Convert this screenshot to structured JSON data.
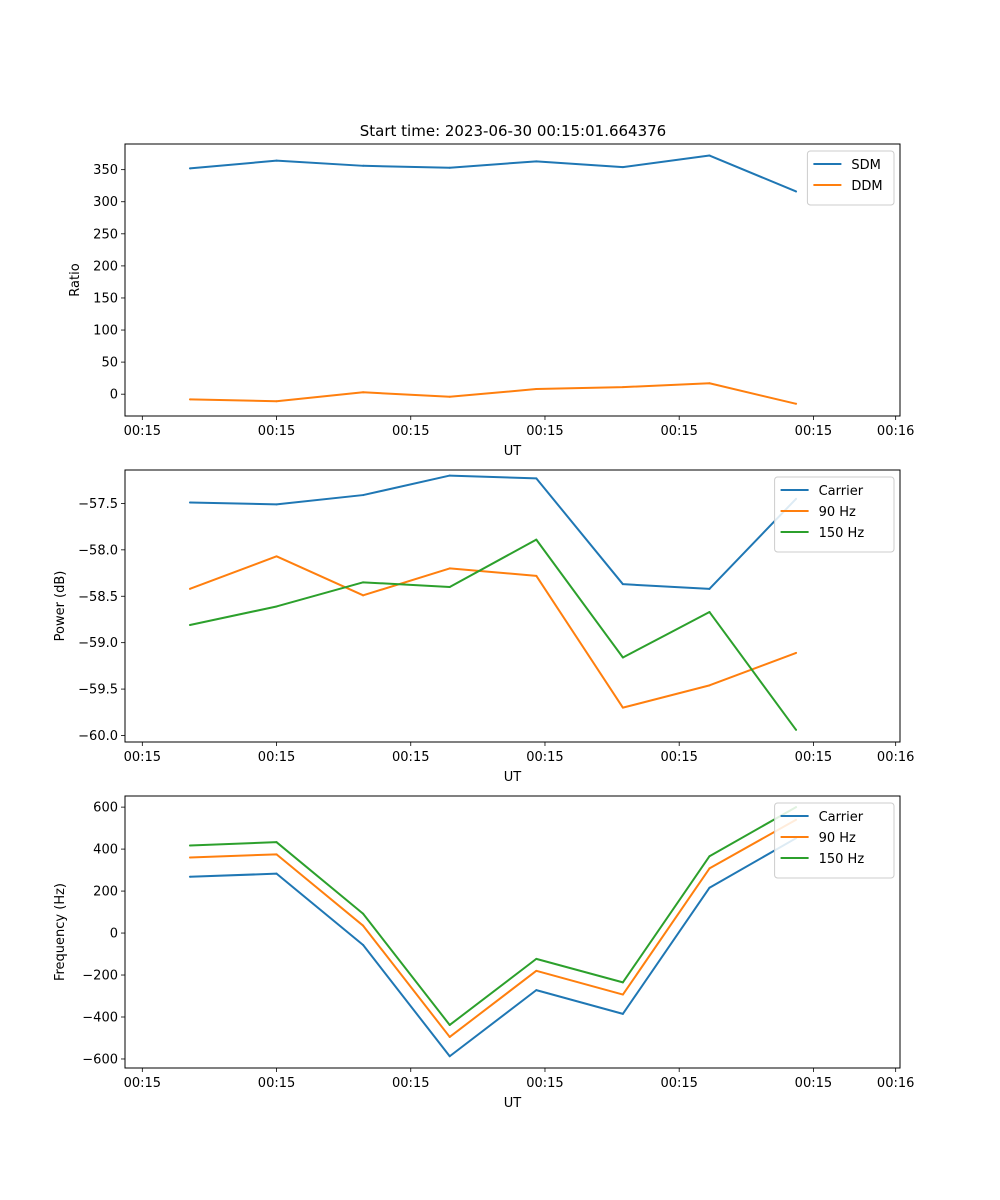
{
  "figure_title": "Start time: 2023-06-30 00:15:01.664376",
  "chart_data": [
    {
      "type": "line",
      "title": "Start time: 2023-06-30 00:15:01.664376",
      "xlabel": "UT",
      "ylabel": "Ratio",
      "x": [
        1,
        2,
        3,
        4,
        5,
        6,
        7,
        8
      ],
      "xlim": [
        0.25,
        9.2
      ],
      "xticks": [
        {
          "value": 0.45,
          "label": "00:15"
        },
        {
          "value": 2,
          "label": "00:15"
        },
        {
          "value": 3.55,
          "label": "00:15"
        },
        {
          "value": 5.1,
          "label": "00:15"
        },
        {
          "value": 6.65,
          "label": "00:15"
        },
        {
          "value": 8.2,
          "label": "00:15"
        },
        {
          "value": 9.15,
          "label": "00:16"
        }
      ],
      "ylim": [
        -34,
        390
      ],
      "yticks": [
        0,
        50,
        100,
        150,
        200,
        250,
        300,
        350
      ],
      "legend_position": "top-right",
      "series": [
        {
          "name": "SDM",
          "color": "#1f77b4",
          "values": [
            352,
            364,
            356,
            353,
            363,
            354,
            372,
            316
          ]
        },
        {
          "name": "DDM",
          "color": "#ff7f0e",
          "values": [
            -8,
            -11,
            3,
            -4,
            8,
            11,
            17,
            -15
          ]
        }
      ]
    },
    {
      "type": "line",
      "xlabel": "UT",
      "ylabel": "Power (dB)",
      "x": [
        1,
        2,
        3,
        4,
        5,
        6,
        7,
        8
      ],
      "xlim": [
        0.25,
        9.2
      ],
      "xticks": [
        {
          "value": 0.45,
          "label": "00:15"
        },
        {
          "value": 2,
          "label": "00:15"
        },
        {
          "value": 3.55,
          "label": "00:15"
        },
        {
          "value": 5.1,
          "label": "00:15"
        },
        {
          "value": 6.65,
          "label": "00:15"
        },
        {
          "value": 8.2,
          "label": "00:15"
        },
        {
          "value": 9.15,
          "label": "00:16"
        }
      ],
      "ylim": [
        -60.07,
        -57.14
      ],
      "yticks": [
        -60.0,
        -59.5,
        -59.0,
        -58.5,
        -58.0,
        -57.5
      ],
      "legend_position": "top-right",
      "series": [
        {
          "name": "Carrier",
          "color": "#1f77b4",
          "values": [
            -57.49,
            -57.51,
            -57.41,
            -57.2,
            -57.23,
            -58.37,
            -58.42,
            -57.45
          ]
        },
        {
          "name": "90 Hz",
          "color": "#ff7f0e",
          "values": [
            -58.42,
            -58.07,
            -58.49,
            -58.2,
            -58.28,
            -59.7,
            -59.46,
            -59.11
          ]
        },
        {
          "name": "150 Hz",
          "color": "#2ca02c",
          "values": [
            -58.81,
            -58.61,
            -58.35,
            -58.4,
            -57.89,
            -59.16,
            -58.67,
            -59.94
          ]
        }
      ]
    },
    {
      "type": "line",
      "xlabel": "UT",
      "ylabel": "Frequency (Hz)",
      "x": [
        1,
        2,
        3,
        4,
        5,
        6,
        7,
        8
      ],
      "xlim": [
        0.25,
        9.2
      ],
      "xticks": [
        {
          "value": 0.45,
          "label": "00:15"
        },
        {
          "value": 2,
          "label": "00:15"
        },
        {
          "value": 3.55,
          "label": "00:15"
        },
        {
          "value": 5.1,
          "label": "00:15"
        },
        {
          "value": 6.65,
          "label": "00:15"
        },
        {
          "value": 8.2,
          "label": "00:15"
        },
        {
          "value": 9.15,
          "label": "00:16"
        }
      ],
      "ylim": [
        -643,
        653
      ],
      "yticks": [
        -600,
        -400,
        -200,
        0,
        200,
        400,
        600
      ],
      "legend_position": "top-right",
      "series": [
        {
          "name": "Carrier",
          "color": "#1f77b4",
          "values": [
            268,
            283,
            -57,
            -587,
            -272,
            -385,
            216,
            452
          ]
        },
        {
          "name": "90 Hz",
          "color": "#ff7f0e",
          "values": [
            360,
            375,
            35,
            -495,
            -180,
            -293,
            308,
            540
          ]
        },
        {
          "name": "150 Hz",
          "color": "#2ca02c",
          "values": [
            417,
            433,
            92,
            -438,
            -123,
            -235,
            366,
            600
          ]
        }
      ]
    }
  ]
}
